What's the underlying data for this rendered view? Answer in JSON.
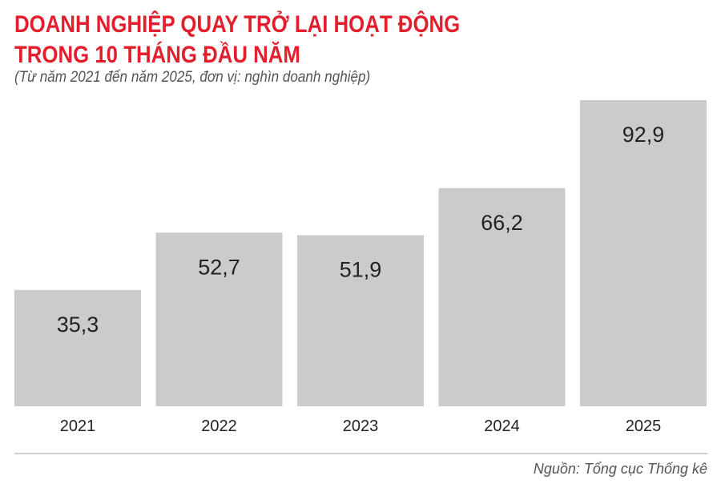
{
  "chart_data": {
    "type": "bar",
    "title_line1": "DOANH NGHIỆP QUAY TRỞ LẠI HOẠT ĐỘNG",
    "title_line2": "TRONG 10 THÁNG ĐẦU NĂM",
    "subtitle": "(Từ năm 2021 đến năm 2025, đơn vị: nghìn doanh nghiệp)",
    "categories": [
      "2021",
      "2022",
      "2023",
      "2024",
      "2025"
    ],
    "values": [
      35.3,
      52.7,
      51.9,
      66.2,
      92.9
    ],
    "value_labels": [
      "35,3",
      "52,7",
      "51,9",
      "66,2",
      "92,9"
    ],
    "ylim": [
      0,
      92.9
    ],
    "grid": false,
    "bar_color": "#cccacb",
    "title_color": "#e31f2d",
    "source": "Nguồn: Tổng cục Thống kê"
  }
}
